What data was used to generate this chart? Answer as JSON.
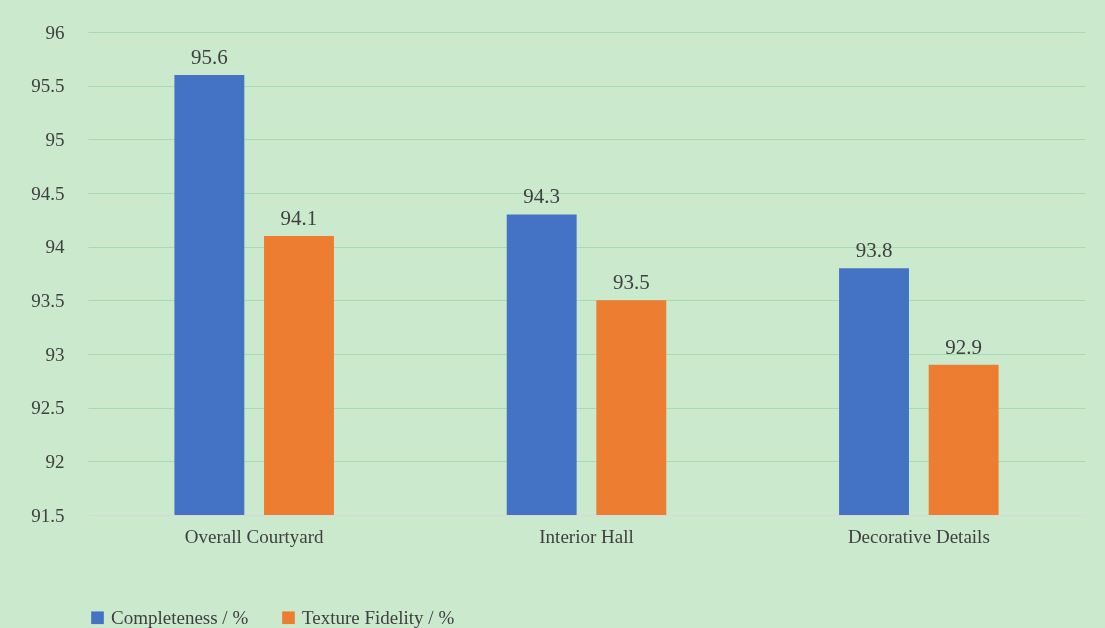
{
  "chart_data": {
    "type": "bar",
    "categories": [
      "Overall Courtyard",
      "Interior Hall",
      "Decorative Details"
    ],
    "series": [
      {
        "name": "Completeness / %",
        "color": "#4472c4",
        "values": [
          95.6,
          94.3,
          93.8
        ]
      },
      {
        "name": "Texture Fidelity / %",
        "color": "#ed7d31",
        "values": [
          94.1,
          93.5,
          92.9
        ]
      }
    ],
    "ylim": [
      91.5,
      96
    ],
    "yticks": [
      91.5,
      92,
      92.5,
      93,
      93.5,
      94,
      94.5,
      95,
      95.5,
      96
    ],
    "grid": "y",
    "legend": "bottom",
    "data_labels": true
  }
}
